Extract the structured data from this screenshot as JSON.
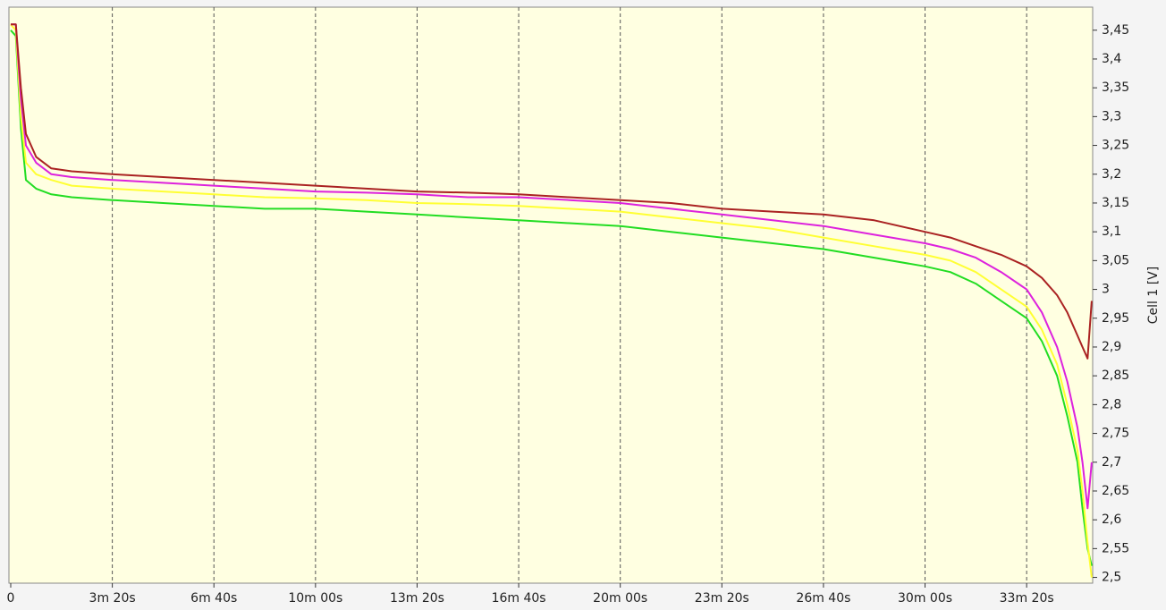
{
  "chart_data": {
    "type": "line",
    "y_label": "Cell 1 [V]",
    "x": [
      0,
      10,
      20,
      30,
      50,
      80,
      120,
      200,
      300,
      400,
      500,
      600,
      700,
      800,
      900,
      1000,
      1100,
      1200,
      1300,
      1400,
      1500,
      1600,
      1700,
      1800,
      1850,
      1900,
      1950,
      2000,
      2030,
      2060,
      2080,
      2100,
      2110,
      2120,
      2128
    ],
    "series": [
      {
        "color": "#22dd22",
        "values": [
          3.45,
          3.44,
          3.28,
          3.19,
          3.175,
          3.165,
          3.16,
          3.155,
          3.15,
          3.145,
          3.14,
          3.14,
          3.135,
          3.13,
          3.125,
          3.12,
          3.115,
          3.11,
          3.1,
          3.09,
          3.08,
          3.07,
          3.055,
          3.04,
          3.03,
          3.01,
          2.98,
          2.95,
          2.91,
          2.85,
          2.78,
          2.7,
          2.62,
          2.55,
          2.52
        ]
      },
      {
        "color": "#ffff33",
        "values": [
          3.46,
          3.45,
          3.3,
          3.22,
          3.2,
          3.19,
          3.18,
          3.175,
          3.17,
          3.165,
          3.16,
          3.158,
          3.155,
          3.15,
          3.148,
          3.145,
          3.14,
          3.135,
          3.125,
          3.115,
          3.105,
          3.09,
          3.075,
          3.06,
          3.05,
          3.03,
          3.0,
          2.97,
          2.93,
          2.87,
          2.8,
          2.72,
          2.65,
          2.56,
          2.5
        ]
      },
      {
        "color": "#dd22dd",
        "values": [
          3.46,
          3.46,
          3.33,
          3.25,
          3.22,
          3.2,
          3.195,
          3.19,
          3.185,
          3.18,
          3.175,
          3.17,
          3.168,
          3.165,
          3.16,
          3.16,
          3.155,
          3.15,
          3.14,
          3.13,
          3.12,
          3.11,
          3.095,
          3.08,
          3.07,
          3.055,
          3.03,
          3.0,
          2.96,
          2.9,
          2.84,
          2.76,
          2.7,
          2.62,
          2.7
        ]
      },
      {
        "color": "#aa2222",
        "values": [
          3.46,
          3.46,
          3.35,
          3.27,
          3.23,
          3.21,
          3.205,
          3.2,
          3.195,
          3.19,
          3.185,
          3.18,
          3.175,
          3.17,
          3.168,
          3.165,
          3.16,
          3.155,
          3.15,
          3.14,
          3.135,
          3.13,
          3.12,
          3.1,
          3.09,
          3.075,
          3.06,
          3.04,
          3.02,
          2.99,
          2.96,
          2.92,
          2.9,
          2.88,
          2.98
        ]
      }
    ],
    "xlim": [
      0,
      2130
    ],
    "xticks": [
      0,
      {
        "value": 200,
        "label": "3m 20s"
      },
      {
        "value": 400,
        "label": "6m 40s"
      },
      {
        "value": 600,
        "label": "10m 00s"
      },
      {
        "value": 800,
        "label": "13m 20s"
      },
      {
        "value": 1000,
        "label": "16m 40s"
      },
      {
        "value": 1200,
        "label": "20m 00s"
      },
      {
        "value": 1400,
        "label": "23m 20s"
      },
      {
        "value": 1600,
        "label": "26m 40s"
      },
      {
        "value": 1800,
        "label": "30m 00s"
      },
      {
        "value": 2000,
        "label": "33m 20s"
      }
    ],
    "ylim": [
      2.49,
      3.49
    ],
    "yticks": [
      {
        "value": 2.5,
        "label": "2,5"
      },
      {
        "value": 2.55,
        "label": "2,55"
      },
      {
        "value": 2.6,
        "label": "2,6"
      },
      {
        "value": 2.65,
        "label": "2,65"
      },
      {
        "value": 2.7,
        "label": "2,7"
      },
      {
        "value": 2.75,
        "label": "2,75"
      },
      {
        "value": 2.8,
        "label": "2,8"
      },
      {
        "value": 2.85,
        "label": "2,85"
      },
      {
        "value": 2.9,
        "label": "2,9"
      },
      {
        "value": 2.95,
        "label": "2,95"
      },
      {
        "value": 3.0,
        "label": "3"
      },
      {
        "value": 3.05,
        "label": "3,05"
      },
      {
        "value": 3.1,
        "label": "3,1"
      },
      {
        "value": 3.15,
        "label": "3,15"
      },
      {
        "value": 3.2,
        "label": "3,2"
      },
      {
        "value": 3.25,
        "label": "3,25"
      },
      {
        "value": 3.3,
        "label": "3,3"
      },
      {
        "value": 3.35,
        "label": "3,35"
      },
      {
        "value": 3.4,
        "label": "3,4"
      },
      {
        "value": 3.45,
        "label": "3,45"
      }
    ],
    "grid": "x"
  }
}
